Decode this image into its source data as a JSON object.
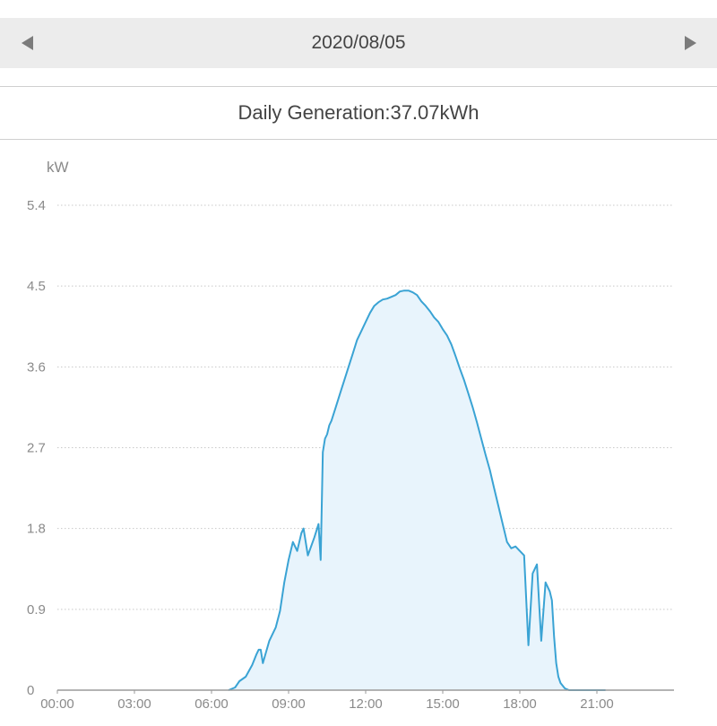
{
  "header": {
    "date": "2020/08/05",
    "prev_icon": "chevron-left-icon",
    "next_icon": "chevron-right-icon"
  },
  "summary": {
    "label": "Daily Generation:37.07kWh"
  },
  "colors": {
    "line": "#3aa3d4",
    "fill": "#e8f4fc",
    "grid": "#c8c8c8",
    "axis": "#9a9a9a",
    "header_bg": "#ececec"
  },
  "chart_data": {
    "type": "area",
    "title": "",
    "xlabel": "",
    "ylabel": "kW",
    "xlim": [
      "00:00",
      "24:00"
    ],
    "ylim": [
      0,
      5.4
    ],
    "grid": true,
    "legend": "none",
    "x_ticks": [
      "00:00",
      "03:00",
      "06:00",
      "09:00",
      "12:00",
      "15:00",
      "18:00",
      "21:00"
    ],
    "y_ticks": [
      "0",
      "0.9",
      "1.8",
      "2.7",
      "3.6",
      "4.5",
      "5.4"
    ],
    "series": [
      {
        "name": "",
        "x": [
          "06:40",
          "06:55",
          "07:05",
          "07:20",
          "07:35",
          "07:45",
          "07:50",
          "07:55",
          "08:00",
          "08:15",
          "08:30",
          "08:40",
          "08:50",
          "09:00",
          "09:10",
          "09:20",
          "09:30",
          "09:35",
          "09:45",
          "10:00",
          "10:10",
          "10:15",
          "10:20",
          "10:25",
          "10:30",
          "10:35",
          "10:40",
          "10:50",
          "11:00",
          "11:10",
          "11:20",
          "11:30",
          "11:40",
          "11:50",
          "12:00",
          "12:10",
          "12:20",
          "12:30",
          "12:40",
          "12:50",
          "13:00",
          "13:10",
          "13:20",
          "13:30",
          "13:40",
          "13:50",
          "14:00",
          "14:10",
          "14:20",
          "14:30",
          "14:40",
          "14:50",
          "15:00",
          "15:10",
          "15:20",
          "15:30",
          "15:40",
          "15:50",
          "16:00",
          "16:10",
          "16:20",
          "16:30",
          "16:40",
          "16:50",
          "17:00",
          "17:10",
          "17:20",
          "17:30",
          "17:40",
          "17:50",
          "18:00",
          "18:10",
          "18:20",
          "18:30",
          "18:40",
          "18:50",
          "19:00",
          "19:10",
          "19:15",
          "19:20",
          "19:25",
          "19:30",
          "19:35",
          "19:40",
          "19:45",
          "19:50",
          "19:55",
          "20:00",
          "20:05",
          "20:10",
          "20:15",
          "20:20",
          "20:25",
          "20:30",
          "20:40",
          "20:50",
          "21:00",
          "21:10",
          "21:20"
        ],
        "y": [
          0.0,
          0.03,
          0.1,
          0.15,
          0.28,
          0.4,
          0.45,
          0.45,
          0.3,
          0.55,
          0.7,
          0.88,
          1.2,
          1.45,
          1.65,
          1.55,
          1.75,
          1.8,
          1.5,
          1.7,
          1.85,
          1.45,
          2.65,
          2.8,
          2.85,
          2.95,
          3.0,
          3.15,
          3.3,
          3.45,
          3.6,
          3.75,
          3.9,
          4.0,
          4.1,
          4.2,
          4.28,
          4.32,
          4.35,
          4.36,
          4.38,
          4.4,
          4.44,
          4.45,
          4.45,
          4.43,
          4.4,
          4.33,
          4.28,
          4.22,
          4.15,
          4.1,
          4.02,
          3.95,
          3.85,
          3.72,
          3.58,
          3.45,
          3.3,
          3.15,
          2.98,
          2.8,
          2.62,
          2.45,
          2.25,
          2.05,
          1.85,
          1.65,
          1.58,
          1.6,
          1.55,
          1.5,
          0.5,
          1.3,
          1.4,
          0.55,
          1.2,
          1.1,
          1.0,
          0.6,
          0.3,
          0.15,
          0.08,
          0.05,
          0.02,
          0.01,
          0.0,
          0.0,
          0.0,
          0.0,
          0.0,
          0.0,
          0.0,
          0.0,
          0.0,
          0.0,
          0.0,
          0.0,
          0.0
        ]
      }
    ]
  }
}
